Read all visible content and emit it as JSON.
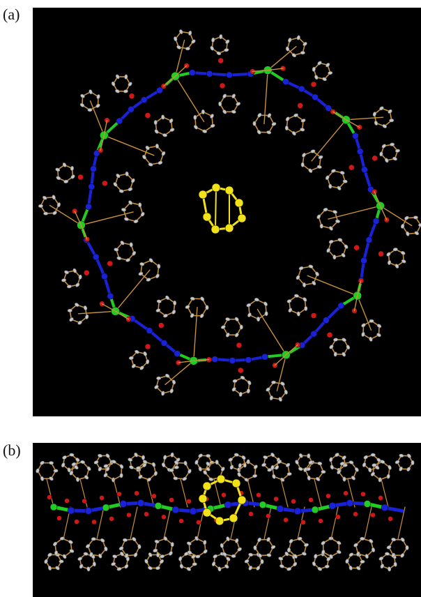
{
  "figure": {
    "panel_a": {
      "label": "(a)"
    },
    "panel_b": {
      "label": "(b)"
    }
  },
  "colors": {
    "background": "#000000",
    "bond": "#c8913c",
    "oxygen": "#d01818",
    "nitrogen": "#1a22d8",
    "metal": "#22cc22",
    "sulfur": "#f2e21a",
    "carbon": "#c7c7c7"
  }
}
